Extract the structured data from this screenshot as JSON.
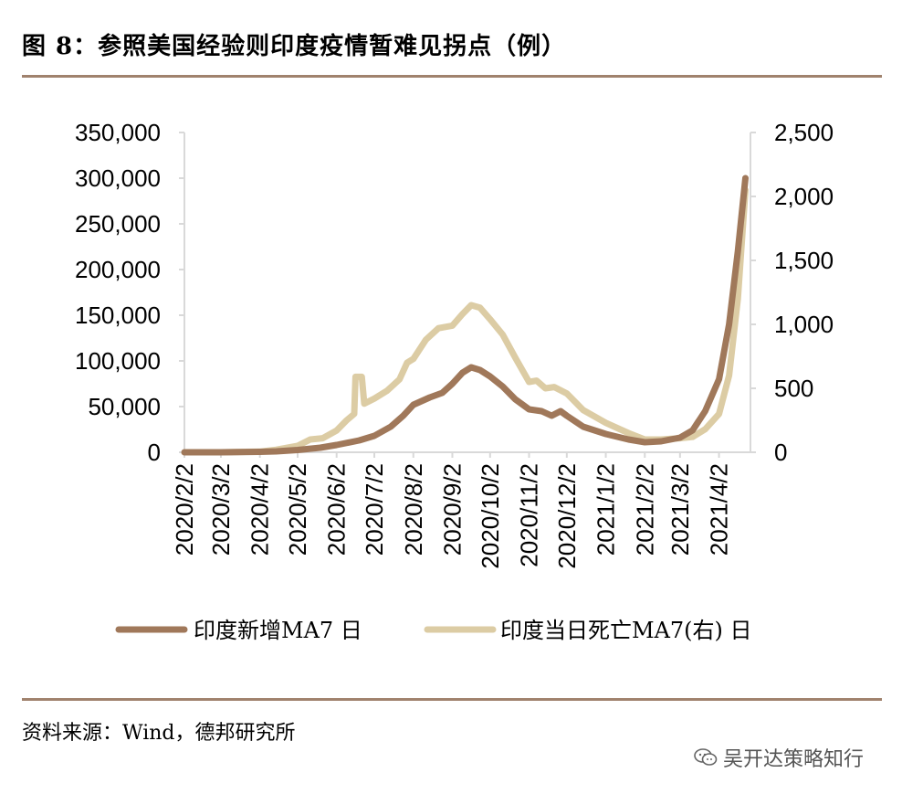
{
  "header": {
    "title": "图 8：参照美国经验则印度疫情暂难见拐点（例）"
  },
  "footer": {
    "source": "资料来源：Wind，德邦研究所",
    "watermark": "吴开达策略知行",
    "watermark_icon": "wechat-icon"
  },
  "colors": {
    "rule": "#a0826d",
    "series_cases": "#a0785a",
    "series_deaths": "#dccca4"
  },
  "chart_data": {
    "type": "line",
    "title": "",
    "x_tick_labels": [
      "2020/2/2",
      "2020/3/2",
      "2020/4/2",
      "2020/5/2",
      "2020/6/2",
      "2020/7/2",
      "2020/8/2",
      "2020/9/2",
      "2020/10/2",
      "2020/11/2",
      "2020/12/2",
      "2021/1/2",
      "2021/2/2",
      "2021/3/2",
      "2021/4/2"
    ],
    "y_left": {
      "ticks": [
        "0",
        "50,000",
        "100,000",
        "150,000",
        "200,000",
        "250,000",
        "300,000",
        "350,000"
      ],
      "range": [
        0,
        350000
      ]
    },
    "y_right": {
      "ticks": [
        "0",
        "500",
        "1,000",
        "1,500",
        "2,000",
        "2,500"
      ],
      "range": [
        0,
        2500
      ]
    },
    "legend": [
      {
        "label": "印度新增MA7 日",
        "axis": "left"
      },
      {
        "label": "印度当日死亡MA7(右) 日",
        "axis": "right"
      }
    ],
    "series": [
      {
        "name": "印度新增MA7 日",
        "axis": "left",
        "points": [
          [
            "2020/2/2",
            0
          ],
          [
            "2020/3/2",
            0
          ],
          [
            "2020/4/2",
            500
          ],
          [
            "2020/4/15",
            1000
          ],
          [
            "2020/5/2",
            2500
          ],
          [
            "2020/5/20",
            5000
          ],
          [
            "2020/6/2",
            8000
          ],
          [
            "2020/6/20",
            13000
          ],
          [
            "2020/7/2",
            18000
          ],
          [
            "2020/7/15",
            28000
          ],
          [
            "2020/7/25",
            40000
          ],
          [
            "2020/8/2",
            52000
          ],
          [
            "2020/8/15",
            60000
          ],
          [
            "2020/8/25",
            65000
          ],
          [
            "2020/9/2",
            75000
          ],
          [
            "2020/9/10",
            87000
          ],
          [
            "2020/9/17",
            93000
          ],
          [
            "2020/9/24",
            90000
          ],
          [
            "2020/10/2",
            83000
          ],
          [
            "2020/10/12",
            72000
          ],
          [
            "2020/10/22",
            58000
          ],
          [
            "2020/11/2",
            47000
          ],
          [
            "2020/11/12",
            45000
          ],
          [
            "2020/11/20",
            40000
          ],
          [
            "2020/11/27",
            45000
          ],
          [
            "2020/12/2",
            40000
          ],
          [
            "2020/12/15",
            28000
          ],
          [
            "2021/1/2",
            20000
          ],
          [
            "2021/1/20",
            14000
          ],
          [
            "2021/2/2",
            11000
          ],
          [
            "2021/2/15",
            12000
          ],
          [
            "2021/3/2",
            16000
          ],
          [
            "2021/3/12",
            24000
          ],
          [
            "2021/3/22",
            45000
          ],
          [
            "2021/4/2",
            80000
          ],
          [
            "2021/4/10",
            140000
          ],
          [
            "2021/4/17",
            220000
          ],
          [
            "2021/4/23",
            300000
          ]
        ]
      },
      {
        "name": "印度当日死亡MA7(右) 日",
        "axis": "right",
        "points": [
          [
            "2020/2/2",
            0
          ],
          [
            "2020/3/2",
            0
          ],
          [
            "2020/4/2",
            5
          ],
          [
            "2020/4/15",
            20
          ],
          [
            "2020/5/2",
            50
          ],
          [
            "2020/5/12",
            100
          ],
          [
            "2020/5/22",
            110
          ],
          [
            "2020/6/2",
            170
          ],
          [
            "2020/6/10",
            250
          ],
          [
            "2020/6/16",
            300
          ],
          [
            "2020/6/17",
            590
          ],
          [
            "2020/6/22",
            590
          ],
          [
            "2020/6/24",
            380
          ],
          [
            "2020/7/2",
            420
          ],
          [
            "2020/7/12",
            480
          ],
          [
            "2020/7/22",
            570
          ],
          [
            "2020/7/28",
            700
          ],
          [
            "2020/8/2",
            730
          ],
          [
            "2020/8/12",
            880
          ],
          [
            "2020/8/22",
            970
          ],
          [
            "2020/9/2",
            990
          ],
          [
            "2020/9/10",
            1080
          ],
          [
            "2020/9/17",
            1150
          ],
          [
            "2020/9/24",
            1130
          ],
          [
            "2020/10/2",
            1040
          ],
          [
            "2020/10/12",
            920
          ],
          [
            "2020/10/22",
            740
          ],
          [
            "2020/11/2",
            550
          ],
          [
            "2020/11/8",
            560
          ],
          [
            "2020/11/15",
            500
          ],
          [
            "2020/11/22",
            510
          ],
          [
            "2020/12/2",
            460
          ],
          [
            "2020/12/15",
            330
          ],
          [
            "2021/1/2",
            230
          ],
          [
            "2021/1/20",
            150
          ],
          [
            "2021/2/2",
            100
          ],
          [
            "2021/2/15",
            100
          ],
          [
            "2021/3/2",
            110
          ],
          [
            "2021/3/12",
            120
          ],
          [
            "2021/3/22",
            180
          ],
          [
            "2021/4/2",
            300
          ],
          [
            "2021/4/10",
            600
          ],
          [
            "2021/4/17",
            1200
          ],
          [
            "2021/4/23",
            2050
          ]
        ]
      }
    ]
  }
}
